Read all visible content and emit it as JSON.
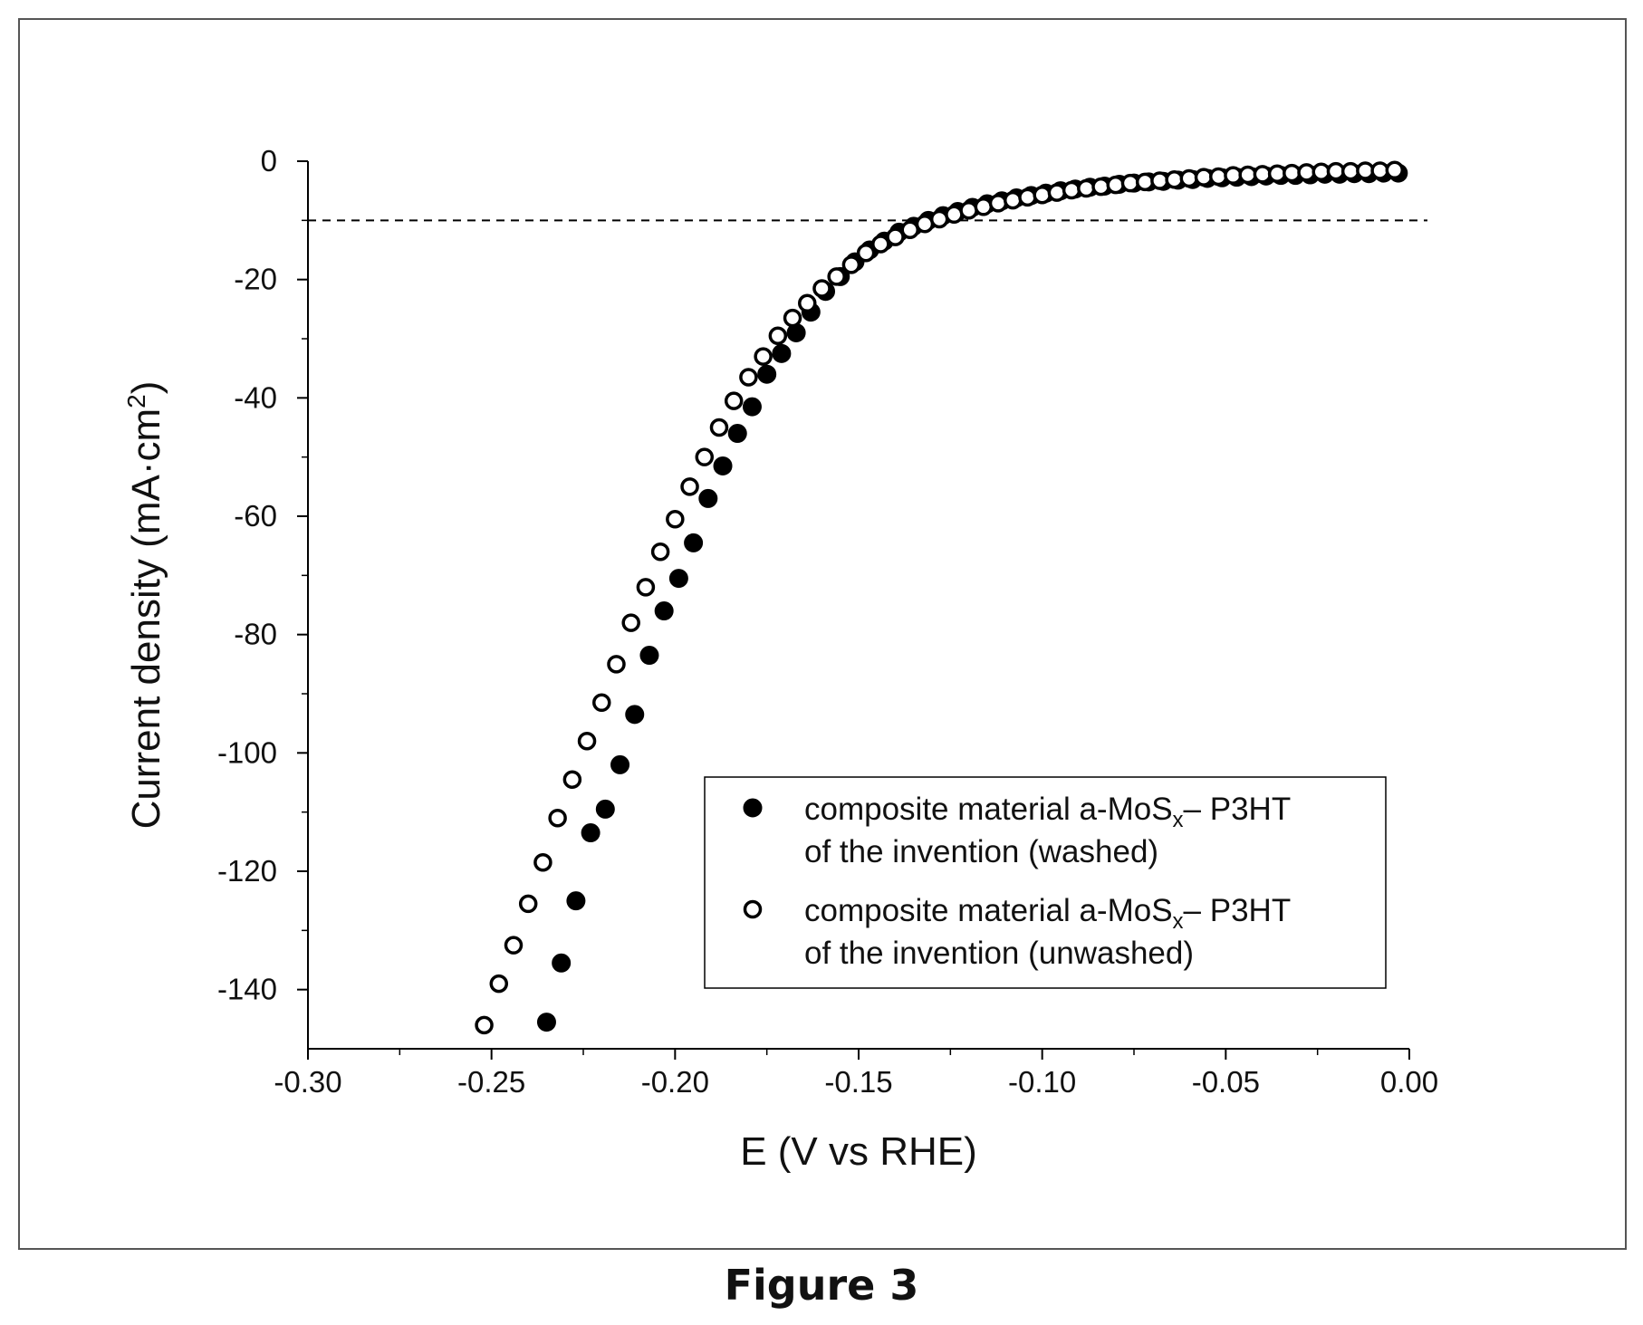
{
  "caption": "Figure 3",
  "chart_data": {
    "type": "scatter",
    "xlabel": "E (V vs RHE)",
    "ylabel_text": "Current density (mA·cm",
    "ylabel_sup": "2",
    "ylabel_close": ")",
    "xlim": [
      -0.3,
      0.0
    ],
    "ylim": [
      -150,
      0
    ],
    "x_ticks": [
      -0.3,
      -0.25,
      -0.2,
      -0.15,
      -0.1,
      -0.05,
      0.0
    ],
    "x_tick_labels": [
      "-0.30",
      "-0.25",
      "-0.20",
      "-0.15",
      "-0.10",
      "-0.05",
      "0.00"
    ],
    "y_ticks": [
      0,
      -20,
      -40,
      -60,
      -80,
      -100,
      -120,
      -140
    ],
    "y_tick_labels": [
      "0",
      "-20",
      "-40",
      "-60",
      "-80",
      "-100",
      "-120",
      "-140"
    ],
    "reference_line": {
      "y": -10,
      "style": "dashed"
    },
    "grid": false,
    "legend": {
      "placement": "bottom-right",
      "entries": [
        {
          "line1_pre": "composite material a-MoS",
          "line1_sub": "x",
          "line1_post": "– P3HT",
          "line2": "of the invention (washed)",
          "marker": "filled-circle"
        },
        {
          "line1_pre": "composite material a-MoS",
          "line1_sub": "x",
          "line1_post": "– P3HT",
          "line2": "of the invention (unwashed)",
          "marker": "open-circle"
        }
      ]
    },
    "series": [
      {
        "marker": "filled-circle",
        "points": [
          [
            -0.235,
            -145.5
          ],
          [
            -0.231,
            -135.5
          ],
          [
            -0.227,
            -125
          ],
          [
            -0.223,
            -113.5
          ],
          [
            -0.219,
            -109.5
          ],
          [
            -0.215,
            -102
          ],
          [
            -0.211,
            -93.5
          ],
          [
            -0.207,
            -83.5
          ],
          [
            -0.203,
            -76
          ],
          [
            -0.199,
            -70.5
          ],
          [
            -0.195,
            -64.5
          ],
          [
            -0.191,
            -57
          ],
          [
            -0.187,
            -51.5
          ],
          [
            -0.183,
            -46
          ],
          [
            -0.179,
            -41.5
          ],
          [
            -0.175,
            -36
          ],
          [
            -0.171,
            -32.5
          ],
          [
            -0.167,
            -29
          ],
          [
            -0.163,
            -25.5
          ],
          [
            -0.159,
            -22
          ],
          [
            -0.155,
            -19.5
          ],
          [
            -0.151,
            -17
          ],
          [
            -0.147,
            -15
          ],
          [
            -0.143,
            -13.5
          ],
          [
            -0.139,
            -12
          ],
          [
            -0.135,
            -11
          ],
          [
            -0.131,
            -10
          ],
          [
            -0.127,
            -9.2
          ],
          [
            -0.123,
            -8.5
          ],
          [
            -0.119,
            -7.8
          ],
          [
            -0.115,
            -7.2
          ],
          [
            -0.111,
            -6.7
          ],
          [
            -0.107,
            -6.2
          ],
          [
            -0.103,
            -5.8
          ],
          [
            -0.099,
            -5.4
          ],
          [
            -0.095,
            -5
          ],
          [
            -0.091,
            -4.7
          ],
          [
            -0.087,
            -4.4
          ],
          [
            -0.083,
            -4.2
          ],
          [
            -0.079,
            -3.9
          ],
          [
            -0.075,
            -3.7
          ],
          [
            -0.071,
            -3.5
          ],
          [
            -0.067,
            -3.4
          ],
          [
            -0.063,
            -3.2
          ],
          [
            -0.059,
            -3.1
          ],
          [
            -0.055,
            -2.9
          ],
          [
            -0.051,
            -2.8
          ],
          [
            -0.047,
            -2.7
          ],
          [
            -0.043,
            -2.6
          ],
          [
            -0.039,
            -2.5
          ],
          [
            -0.035,
            -2.4
          ],
          [
            -0.031,
            -2.4
          ],
          [
            -0.027,
            -2.3
          ],
          [
            -0.023,
            -2.2
          ],
          [
            -0.019,
            -2.2
          ],
          [
            -0.015,
            -2.1
          ],
          [
            -0.011,
            -2.1
          ],
          [
            -0.007,
            -2
          ],
          [
            -0.003,
            -2
          ]
        ]
      },
      {
        "marker": "open-circle",
        "points": [
          [
            -0.252,
            -146
          ],
          [
            -0.248,
            -139
          ],
          [
            -0.244,
            -132.5
          ],
          [
            -0.24,
            -125.5
          ],
          [
            -0.236,
            -118.5
          ],
          [
            -0.232,
            -111
          ],
          [
            -0.228,
            -104.5
          ],
          [
            -0.224,
            -98
          ],
          [
            -0.22,
            -91.5
          ],
          [
            -0.216,
            -85
          ],
          [
            -0.212,
            -78
          ],
          [
            -0.208,
            -72
          ],
          [
            -0.204,
            -66
          ],
          [
            -0.2,
            -60.5
          ],
          [
            -0.196,
            -55
          ],
          [
            -0.192,
            -50
          ],
          [
            -0.188,
            -45
          ],
          [
            -0.184,
            -40.5
          ],
          [
            -0.18,
            -36.5
          ],
          [
            -0.176,
            -33
          ],
          [
            -0.172,
            -29.5
          ],
          [
            -0.168,
            -26.5
          ],
          [
            -0.164,
            -24
          ],
          [
            -0.16,
            -21.5
          ],
          [
            -0.156,
            -19.5
          ],
          [
            -0.152,
            -17.5
          ],
          [
            -0.148,
            -15.5
          ],
          [
            -0.144,
            -14
          ],
          [
            -0.14,
            -12.8
          ],
          [
            -0.136,
            -11.6
          ],
          [
            -0.132,
            -10.6
          ],
          [
            -0.128,
            -9.8
          ],
          [
            -0.124,
            -9
          ],
          [
            -0.12,
            -8.3
          ],
          [
            -0.116,
            -7.7
          ],
          [
            -0.112,
            -7.1
          ],
          [
            -0.108,
            -6.6
          ],
          [
            -0.104,
            -6.1
          ],
          [
            -0.1,
            -5.7
          ],
          [
            -0.096,
            -5.3
          ],
          [
            -0.092,
            -4.9
          ],
          [
            -0.088,
            -4.6
          ],
          [
            -0.084,
            -4.3
          ],
          [
            -0.08,
            -4
          ],
          [
            -0.076,
            -3.7
          ],
          [
            -0.072,
            -3.5
          ],
          [
            -0.068,
            -3.3
          ],
          [
            -0.064,
            -3.1
          ],
          [
            -0.06,
            -2.9
          ],
          [
            -0.056,
            -2.7
          ],
          [
            -0.052,
            -2.6
          ],
          [
            -0.048,
            -2.4
          ],
          [
            -0.044,
            -2.3
          ],
          [
            -0.04,
            -2.2
          ],
          [
            -0.036,
            -2.1
          ],
          [
            -0.032,
            -2
          ],
          [
            -0.028,
            -1.9
          ],
          [
            -0.024,
            -1.8
          ],
          [
            -0.02,
            -1.7
          ],
          [
            -0.016,
            -1.7
          ],
          [
            -0.012,
            -1.6
          ],
          [
            -0.008,
            -1.6
          ],
          [
            -0.004,
            -1.5
          ]
        ]
      }
    ]
  }
}
